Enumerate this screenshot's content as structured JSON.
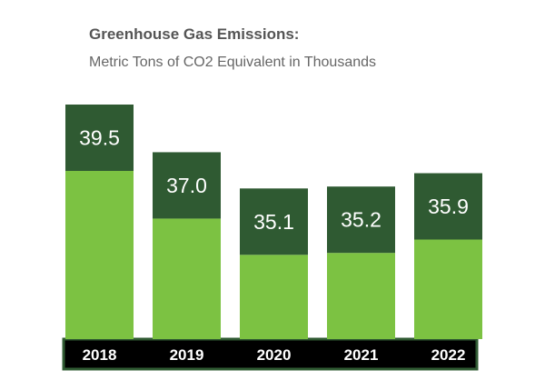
{
  "chart_data": {
    "type": "bar",
    "title": "Greenhouse Gas Emissions:",
    "subtitle": "Metric Tons of CO2 Equivalent in Thousands",
    "categories": [
      "2018",
      "2019",
      "2020",
      "2021",
      "2022"
    ],
    "values": [
      39.5,
      37.0,
      35.1,
      35.2,
      35.9
    ],
    "value_labels": [
      "39.5",
      "37.0",
      "35.1",
      "35.2",
      "35.9"
    ],
    "ylim": [
      0,
      40
    ],
    "grid": false,
    "legend": "none"
  },
  "colors": {
    "bar_top": "#2f5a32",
    "bar_bottom": "#7cc242",
    "axis_band": "#000000",
    "axis_border": "#2f5a32",
    "title_text": "#555555",
    "subtitle_text": "#666666"
  }
}
